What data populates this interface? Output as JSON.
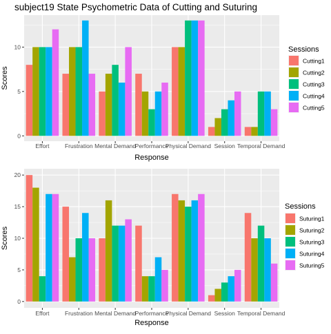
{
  "title": "subject19 State Psychometric Data of Cutting and Suturing",
  "chart_data": [
    {
      "type": "bar",
      "title": "subject19 State Psychometric Data of Cutting and Suturing",
      "xlabel": "Response",
      "ylabel": "Scores",
      "ylim": [
        -0.6,
        13.6
      ],
      "yticks": [
        0,
        5,
        10
      ],
      "grid": true,
      "legend_title": "Sessions",
      "legend_position": "right",
      "categories": [
        "Effort",
        "Frustration",
        "Mental Demand",
        "Performance",
        "Physical Demand",
        "Session",
        "Temporal Demand"
      ],
      "series": [
        {
          "name": "Cutting1",
          "color": "#F8766D",
          "values": [
            8,
            7,
            5,
            7,
            10,
            1,
            1
          ]
        },
        {
          "name": "Cutting2",
          "color": "#A3A500",
          "values": [
            10,
            10,
            7,
            5,
            10,
            2,
            1
          ]
        },
        {
          "name": "Cutting3",
          "color": "#00BF7D",
          "values": [
            10,
            10,
            8,
            3,
            13,
            3,
            5
          ]
        },
        {
          "name": "Cutting4",
          "color": "#00B0F6",
          "values": [
            10,
            13,
            6,
            5,
            13,
            4,
            5
          ]
        },
        {
          "name": "Cutting5",
          "color": "#E76BF3",
          "values": [
            12,
            7,
            10,
            6,
            13,
            5,
            3
          ]
        }
      ]
    },
    {
      "type": "bar",
      "title": "",
      "xlabel": "Response",
      "ylabel": "Scores",
      "ylim": [
        -1,
        21
      ],
      "yticks": [
        0,
        5,
        10,
        15,
        20
      ],
      "grid": true,
      "legend_title": "Sessions",
      "legend_position": "right",
      "categories": [
        "Effort",
        "Frustration",
        "Mental Demand",
        "Performance",
        "Physical Demand",
        "Session",
        "Temporal Demand"
      ],
      "series": [
        {
          "name": "Suturing1",
          "color": "#F8766D",
          "values": [
            20,
            15,
            10,
            12,
            17,
            1,
            14
          ]
        },
        {
          "name": "Suturing2",
          "color": "#A3A500",
          "values": [
            18,
            7,
            16,
            4,
            16,
            2,
            10
          ]
        },
        {
          "name": "Suturing3",
          "color": "#00BF7D",
          "values": [
            4,
            10,
            12,
            4,
            15,
            3,
            12
          ]
        },
        {
          "name": "Suturing4",
          "color": "#00B0F6",
          "values": [
            17,
            14,
            12,
            7,
            16,
            4,
            10
          ]
        },
        {
          "name": "Suturing5",
          "color": "#E76BF3",
          "values": [
            17,
            10,
            13,
            5,
            17,
            5,
            6
          ]
        }
      ]
    }
  ]
}
